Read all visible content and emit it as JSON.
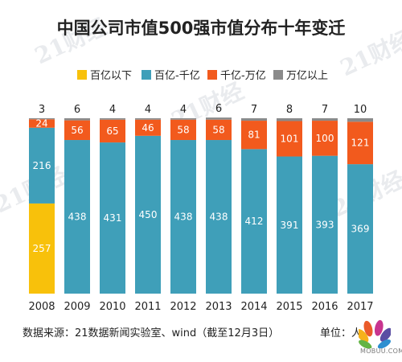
{
  "title": "中国公司市值500强市值分布十年变迁",
  "footer": {
    "source": "数据来源：21数据新闻实验室、wind（截至12月3日）",
    "unit": "单位：人"
  },
  "watermark_text": "21财经",
  "site_mark": "MOBUU.COM",
  "colors": {
    "yellow": "#f8c10b",
    "blue": "#3f9fb9",
    "orange": "#f25a1d",
    "gray": "#8a8a8a",
    "label_inside": "#ffffff",
    "axis_text": "#333333",
    "title_text": "#222222"
  },
  "chart_data": {
    "type": "bar",
    "stacked": true,
    "title": "中国公司市值500强市值分布十年变迁",
    "xlabel": "",
    "ylabel": "",
    "unit": "单位：人",
    "legend_position": "top",
    "grid": false,
    "ylim": [
      0,
      500
    ],
    "categories": [
      "2008",
      "2009",
      "2010",
      "2011",
      "2012",
      "2013",
      "2014",
      "2015",
      "2016",
      "2017"
    ],
    "series": [
      {
        "name": "百亿以下",
        "color": "#f8c10b",
        "values": [
          257,
          0,
          0,
          0,
          0,
          0,
          0,
          0,
          0,
          0
        ]
      },
      {
        "name": "百亿-千亿",
        "color": "#3f9fb9",
        "values": [
          216,
          438,
          431,
          450,
          438,
          438,
          412,
          391,
          393,
          369
        ]
      },
      {
        "name": "千亿-万亿",
        "color": "#f25a1d",
        "values": [
          24,
          56,
          65,
          46,
          58,
          58,
          81,
          101,
          100,
          121
        ]
      },
      {
        "name": "万亿以上",
        "color": "#8a8a8a",
        "values": [
          3,
          6,
          4,
          4,
          4,
          6,
          7,
          8,
          7,
          10
        ]
      }
    ]
  }
}
